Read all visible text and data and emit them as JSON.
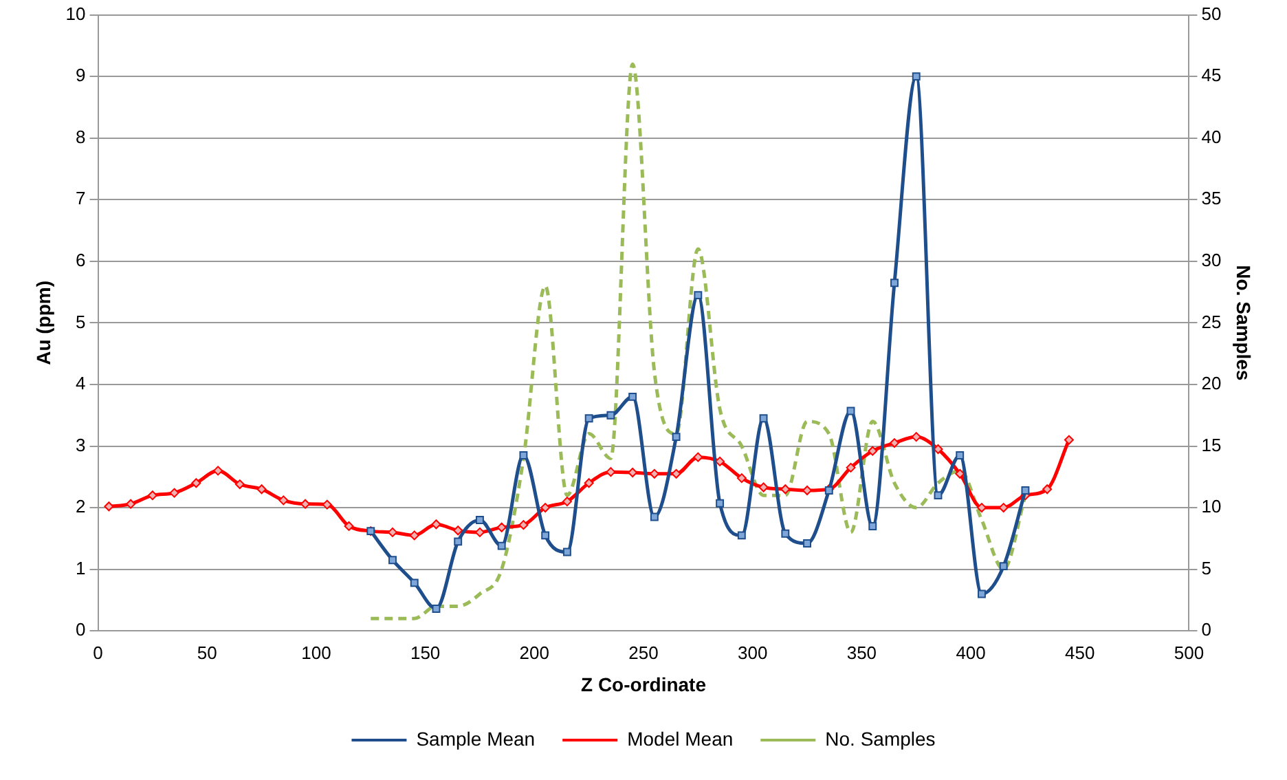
{
  "chart_data": {
    "type": "line",
    "xlabel": "Z Co-ordinate",
    "ylabel": "Au (ppm)",
    "y2label": "No. Samples",
    "xlim": [
      0,
      500
    ],
    "xticks": [
      0,
      50,
      100,
      150,
      200,
      250,
      300,
      350,
      400,
      450,
      500
    ],
    "ylim": [
      0,
      10
    ],
    "yticks": [
      0,
      1,
      2,
      3,
      4,
      5,
      6,
      7,
      8,
      9,
      10
    ],
    "y2lim": [
      0,
      50
    ],
    "y2ticks": [
      0,
      5,
      10,
      15,
      20,
      25,
      30,
      35,
      40,
      45,
      50
    ],
    "grid": "y",
    "legend": "bottom",
    "series": [
      {
        "name": "Sample Mean",
        "color": "#1f4e8c",
        "marker": "square",
        "line_style": "solid",
        "x": [
          125,
          135,
          145,
          155,
          165,
          175,
          185,
          195,
          205,
          215,
          225,
          235,
          245,
          255,
          265,
          275,
          285,
          295,
          305,
          315,
          325,
          335,
          345,
          355,
          365,
          375,
          385,
          395,
          405,
          415,
          425
        ],
        "values": [
          1.62,
          1.15,
          0.78,
          0.36,
          1.45,
          1.8,
          1.38,
          2.85,
          1.55,
          1.28,
          3.45,
          3.5,
          3.8,
          1.85,
          3.15,
          5.45,
          2.07,
          1.55,
          3.45,
          1.58,
          1.42,
          2.28,
          3.57,
          1.7,
          5.65,
          9.0,
          2.2,
          2.85,
          0.6,
          1.05,
          2.28
        ]
      },
      {
        "name": "Model Mean",
        "color": "#ff0000",
        "marker": "diamond",
        "line_style": "solid",
        "x": [
          5,
          15,
          25,
          35,
          45,
          55,
          65,
          75,
          85,
          95,
          105,
          115,
          125,
          135,
          145,
          155,
          165,
          175,
          185,
          195,
          205,
          215,
          225,
          235,
          245,
          255,
          265,
          275,
          285,
          295,
          305,
          315,
          325,
          335,
          345,
          355,
          365,
          375,
          385,
          395,
          405,
          415,
          425,
          435,
          445
        ],
        "values": [
          2.02,
          2.06,
          2.2,
          2.24,
          2.4,
          2.6,
          2.38,
          2.3,
          2.12,
          2.06,
          2.05,
          1.7,
          1.62,
          1.6,
          1.55,
          1.73,
          1.63,
          1.6,
          1.68,
          1.72,
          2.0,
          2.1,
          2.4,
          2.58,
          2.57,
          2.55,
          2.55,
          2.82,
          2.75,
          2.48,
          2.33,
          2.3,
          2.28,
          2.3,
          2.65,
          2.92,
          3.05,
          3.15,
          2.95,
          2.55,
          2.0,
          2.0,
          2.2,
          2.3,
          3.1
        ]
      },
      {
        "name": "No. Samples",
        "color": "#9bbb59",
        "marker": "none",
        "line_style": "dashed",
        "axis": "y2",
        "x": [
          125,
          135,
          145,
          155,
          165,
          175,
          185,
          195,
          205,
          215,
          225,
          235,
          245,
          255,
          265,
          275,
          285,
          295,
          305,
          315,
          325,
          335,
          345,
          355,
          365,
          375,
          385,
          395,
          405,
          415,
          425
        ],
        "values": [
          1,
          1,
          1,
          2,
          2,
          3,
          5,
          14,
          28,
          11,
          16,
          14,
          46,
          21,
          16,
          31,
          18,
          15,
          11,
          11,
          17,
          16,
          8,
          17,
          12,
          10,
          12,
          13,
          9,
          5,
          11
        ]
      }
    ]
  }
}
